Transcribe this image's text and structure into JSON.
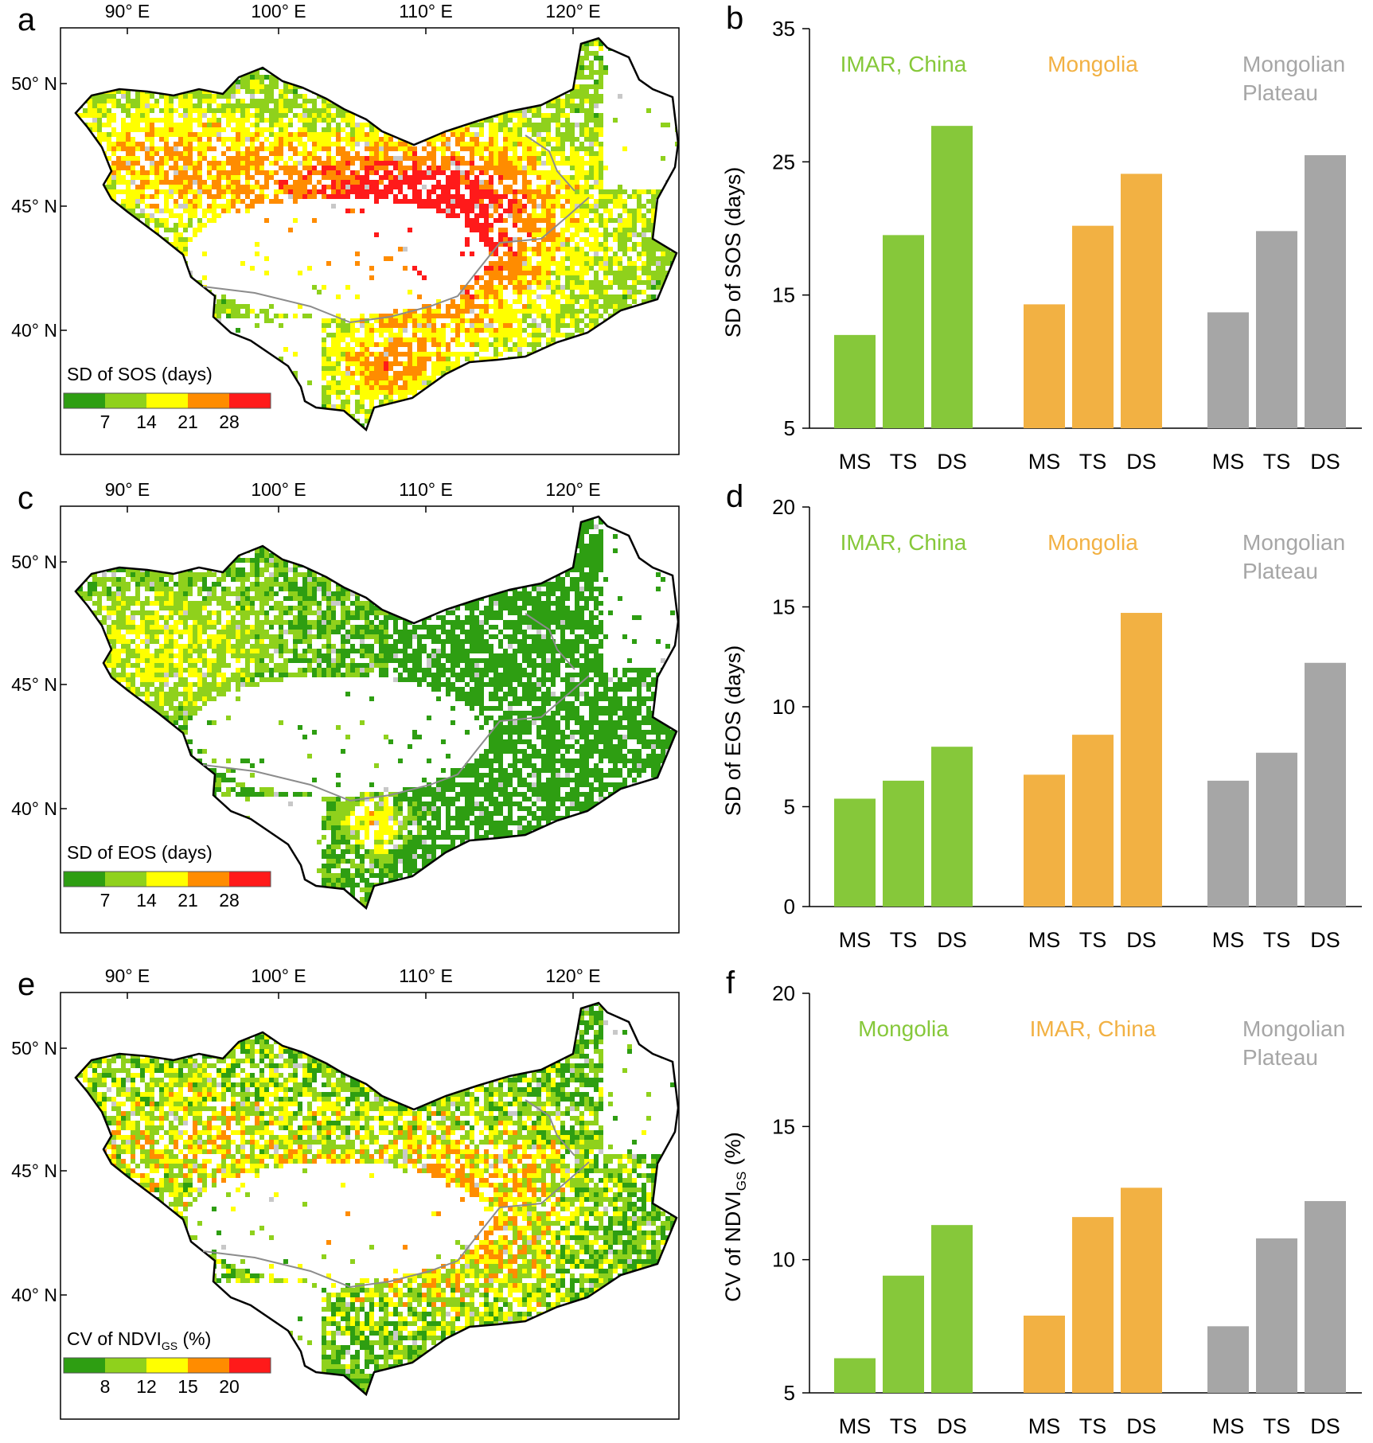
{
  "maps": [
    {
      "panel_letter": "a",
      "legend_title": "SD of SOS (days)",
      "legend_title_main": "",
      "legend_title_sub": "",
      "legend_title_tail": "",
      "legend_ticks": [
        "7",
        "14",
        "21",
        "28"
      ],
      "palette": "sos"
    },
    {
      "panel_letter": "c",
      "legend_title": "SD of EOS (days)",
      "legend_title_main": "",
      "legend_title_sub": "",
      "legend_title_tail": "",
      "legend_ticks": [
        "7",
        "14",
        "21",
        "28"
      ],
      "palette": "eos"
    },
    {
      "panel_letter": "e",
      "legend_title": "",
      "legend_title_main": "CV of NDVI",
      "legend_title_sub": "GS",
      "legend_title_tail": " (%)",
      "legend_ticks": [
        "8",
        "12",
        "15",
        "20"
      ],
      "palette": "ndvi"
    }
  ],
  "map_axes": {
    "lon_labels": [
      "90° E",
      "100° E",
      "110° E",
      "120° E"
    ],
    "lat_labels": [
      "50° N",
      "45° N",
      "40° N"
    ]
  },
  "legend_colors": [
    "#2e9e12",
    "#8fd11c",
    "#ffff00",
    "#ff8c00",
    "#ff1a1a"
  ],
  "colors": {
    "imar": "#86c83a",
    "mongolia": "#f2b143",
    "plateau": "#a6a6a6",
    "boundary": "#000000",
    "river": "#8c8c8c"
  },
  "chart_data": [
    {
      "type": "bar",
      "panel_letter": "b",
      "ylabel": "SD of SOS (days)",
      "ylabel_main": "",
      "ylabel_sub": "",
      "ylabel_tail": "",
      "ylim": [
        5,
        35
      ],
      "yticks": [
        "5",
        "15",
        "25",
        "35"
      ],
      "categories": [
        "MS",
        "TS",
        "DS"
      ],
      "groups": [
        {
          "name": "IMAR, China",
          "name_line2": "",
          "color_key": "imar",
          "values": [
            12.0,
            19.5,
            27.7
          ]
        },
        {
          "name": "Mongolia",
          "name_line2": "",
          "color_key": "mongolia",
          "values": [
            14.3,
            20.2,
            24.1
          ]
        },
        {
          "name": "Mongolian",
          "name_line2": "Plateau",
          "color_key": "plateau",
          "values": [
            13.7,
            19.8,
            25.5
          ]
        }
      ]
    },
    {
      "type": "bar",
      "panel_letter": "d",
      "ylabel": "SD of EOS (days)",
      "ylabel_main": "",
      "ylabel_sub": "",
      "ylabel_tail": "",
      "ylim": [
        0,
        20
      ],
      "yticks": [
        "0",
        "5",
        "10",
        "15",
        "20"
      ],
      "categories": [
        "MS",
        "TS",
        "DS"
      ],
      "groups": [
        {
          "name": "IMAR, China",
          "name_line2": "",
          "color_key": "imar",
          "values": [
            5.4,
            6.3,
            8.0
          ]
        },
        {
          "name": "Mongolia",
          "name_line2": "",
          "color_key": "mongolia",
          "values": [
            6.6,
            8.6,
            14.7
          ]
        },
        {
          "name": "Mongolian",
          "name_line2": "Plateau",
          "color_key": "plateau",
          "values": [
            6.3,
            7.7,
            12.2
          ]
        }
      ]
    },
    {
      "type": "bar",
      "panel_letter": "f",
      "ylabel": "",
      "ylabel_main": "CV of NDVI",
      "ylabel_sub": "GS",
      "ylabel_tail": " (%)",
      "ylim": [
        5,
        20
      ],
      "yticks": [
        "5",
        "10",
        "15",
        "20"
      ],
      "categories": [
        "MS",
        "TS",
        "DS"
      ],
      "groups": [
        {
          "name": "Mongolia",
          "name_line2": "",
          "color_key": "imar",
          "values": [
            6.3,
            9.4,
            11.3
          ]
        },
        {
          "name": "IMAR, China",
          "name_line2": "",
          "color_key": "mongolia",
          "values": [
            7.9,
            11.6,
            12.7
          ]
        },
        {
          "name": "Mongolian",
          "name_line2": "Plateau",
          "color_key": "plateau",
          "values": [
            7.5,
            10.8,
            12.2
          ]
        }
      ]
    }
  ]
}
